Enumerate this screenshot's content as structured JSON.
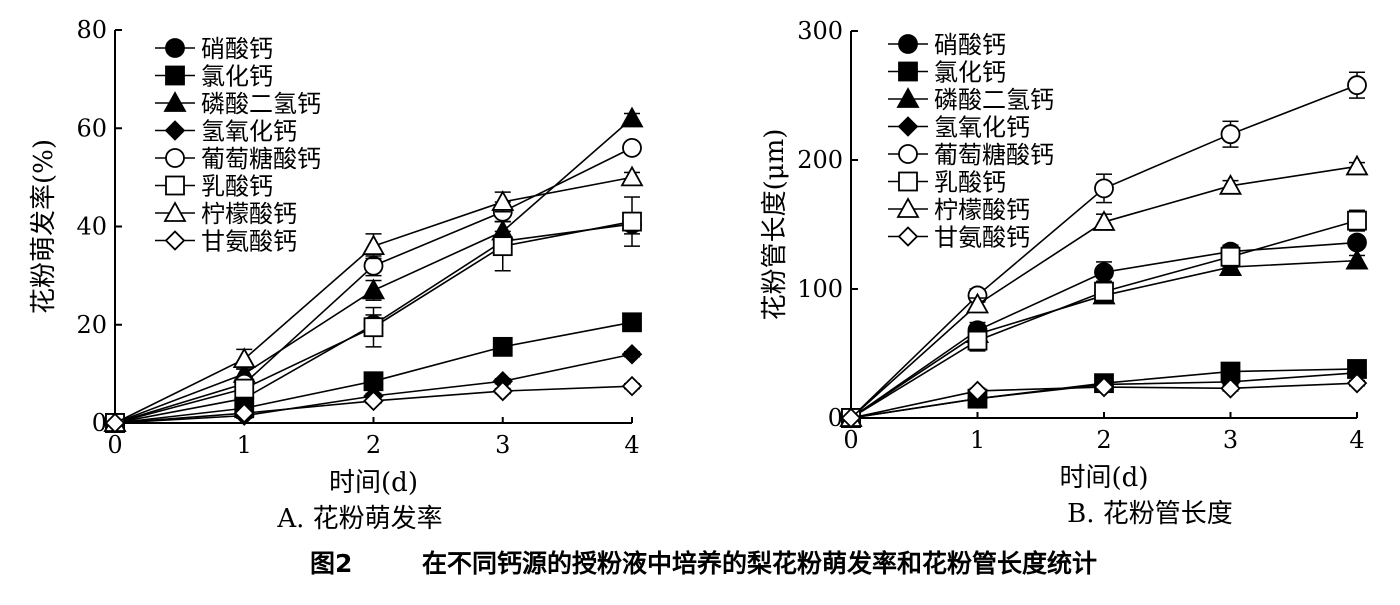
{
  "figure": {
    "caption_label": "图2",
    "caption_text": "在不同钙源的授粉液中培养的梨花粉萌发率和花粉管长度统计"
  },
  "legend": [
    "硝酸钙",
    "氯化钙",
    "磷酸二氢钙",
    "氢氧化钙",
    "葡萄糖酸钙",
    "乳酸钙",
    "柠檬酸钙",
    "甘氨酸钙"
  ],
  "markers": [
    "circle-filled",
    "square-filled",
    "triangle-filled",
    "diamond-filled",
    "circle-open",
    "square-open",
    "triangle-open",
    "diamond-open"
  ],
  "chart_data": [
    {
      "type": "line",
      "subtitle": "A. 花粉萌发率",
      "xlabel": "时间(d)",
      "ylabel": "花粉萌发率(%)",
      "x": [
        0,
        1,
        2,
        3,
        4
      ],
      "xlim": [
        0,
        4
      ],
      "ylim": [
        0,
        80
      ],
      "yticks": [
        0,
        20,
        40,
        60,
        80
      ],
      "grid": false,
      "legend_position": "top-left",
      "series": [
        {
          "name": "硝酸钙",
          "values": [
            0,
            5,
            20,
            37,
            40.5
          ],
          "errors": [
            0,
            1,
            2,
            2,
            2
          ]
        },
        {
          "name": "氯化钙",
          "values": [
            0,
            3,
            8.5,
            15.5,
            20.5
          ],
          "errors": [
            0,
            0.5,
            1,
            1,
            1.5
          ]
        },
        {
          "name": "磷酸二氢钙",
          "values": [
            0,
            10,
            27,
            39,
            62
          ],
          "errors": [
            0,
            1,
            2,
            2,
            1
          ]
        },
        {
          "name": "氢氧化钙",
          "values": [
            0,
            1.5,
            5.5,
            8.5,
            14
          ],
          "errors": [
            0,
            0.5,
            0.5,
            0.5,
            0.5
          ]
        },
        {
          "name": "葡萄糖酸钙",
          "values": [
            0,
            8,
            32,
            43,
            56
          ],
          "errors": [
            0,
            1,
            2,
            2,
            1
          ]
        },
        {
          "name": "乳酸钙",
          "values": [
            0,
            7,
            19.5,
            36,
            41
          ],
          "errors": [
            0,
            1,
            4,
            5,
            5
          ]
        },
        {
          "name": "柠檬酸钙",
          "values": [
            0,
            13,
            36,
            45,
            50
          ],
          "errors": [
            0,
            2,
            2.5,
            2,
            1
          ]
        },
        {
          "name": "甘氨酸钙",
          "values": [
            0,
            2,
            4.5,
            6.5,
            7.5
          ],
          "errors": [
            0,
            0.5,
            0.5,
            0.5,
            0.5
          ]
        }
      ]
    },
    {
      "type": "line",
      "subtitle": "B. 花粉管长度",
      "xlabel": "时间(d)",
      "ylabel": "花粉管长度(μm)",
      "x": [
        0,
        1,
        2,
        3,
        4
      ],
      "xlim": [
        0,
        4
      ],
      "ylim": [
        0,
        300
      ],
      "yticks": [
        0,
        100,
        200,
        300
      ],
      "grid": false,
      "legend_position": "top-left",
      "series": [
        {
          "name": "硝酸钙",
          "values": [
            0,
            68,
            113,
            129,
            136
          ],
          "errors": [
            0,
            6,
            8,
            5,
            4
          ]
        },
        {
          "name": "氯化钙",
          "values": [
            0,
            15,
            27,
            36,
            38
          ],
          "errors": [
            0,
            2,
            2,
            2,
            2
          ]
        },
        {
          "name": "磷酸二氢钙",
          "values": [
            0,
            65,
            95,
            117,
            122
          ],
          "errors": [
            0,
            5,
            5,
            5,
            4
          ]
        },
        {
          "name": "氢氧化钙",
          "values": [
            0,
            15,
            26,
            28,
            35
          ],
          "errors": [
            0,
            2,
            2,
            2,
            2
          ]
        },
        {
          "name": "葡萄糖酸钙",
          "values": [
            0,
            95,
            178,
            220,
            258
          ],
          "errors": [
            0,
            5,
            11,
            10,
            10
          ]
        },
        {
          "name": "乳酸钙",
          "values": [
            0,
            60,
            98,
            125,
            153
          ],
          "errors": [
            0,
            8,
            8,
            8,
            8
          ]
        },
        {
          "name": "柠檬酸钙",
          "values": [
            0,
            88,
            152,
            180,
            195
          ],
          "errors": [
            0,
            5,
            6,
            4,
            3
          ]
        },
        {
          "name": "甘氨酸钙",
          "values": [
            0,
            21,
            24,
            23,
            27
          ],
          "errors": [
            0,
            2,
            2,
            2,
            2
          ]
        }
      ]
    }
  ]
}
